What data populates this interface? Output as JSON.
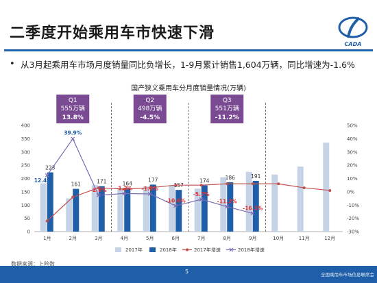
{
  "header": {
    "title": "二季度开始乘用车市快速下滑",
    "logo_text": "CADA"
  },
  "bullet": {
    "text": "从3月起乘用车市场月度销量同比负增长，1-9月累计销售1,604万辆，同比增速为-1.6%"
  },
  "quarters": [
    {
      "label": "Q1",
      "sales": "555万辆",
      "growth": "13.8%",
      "growth_color": "#ffffff"
    },
    {
      "label": "Q2",
      "sales": "498万辆",
      "growth": "-4.5%",
      "growth_color": "#ff4444"
    },
    {
      "label": "Q3",
      "sales": "551万辆",
      "growth": "-11.2%",
      "growth_color": "#ff4444"
    }
  ],
  "footer": {
    "source": "数据来源：上险数",
    "page": "5",
    "brand": "全国乘用车市场信息联席会"
  },
  "colors": {
    "bar2017": "#c5d3e6",
    "bar2018": "#1f5ea8",
    "line2017": "#c0504d",
    "line2018": "#7c6bb3",
    "label_neg": "#e03030",
    "label_pos": "#1f5ea8",
    "quarter_box": "#7a4a93"
  },
  "chart_data": {
    "type": "bar",
    "title": "国产狭义乘用车分月度销量情况(万辆)",
    "categories": [
      "1月",
      "2月",
      "3月",
      "4月",
      "5月",
      "6月",
      "7月",
      "8月",
      "9月",
      "10月",
      "11月",
      "12月"
    ],
    "series": [
      {
        "name": "2017年",
        "kind": "bar",
        "axis": "left",
        "values": [
          182,
          125,
          175,
          165,
          170,
          175,
          162,
          205,
          225,
          215,
          245,
          335
        ]
      },
      {
        "name": "2018年",
        "kind": "bar",
        "axis": "left",
        "values": [
          223,
          161,
          171,
          164,
          177,
          157,
          174,
          186,
          191,
          null,
          null,
          null
        ]
      },
      {
        "name": "2017年增速",
        "kind": "line",
        "axis": "right",
        "values": [
          -22,
          -4,
          3,
          2,
          3,
          5,
          5,
          6,
          6,
          6,
          3,
          1
        ]
      },
      {
        "name": "2018年增速",
        "kind": "line",
        "axis": "right",
        "values": [
          12.4,
          39.9,
          -2.6,
          -1.3,
          -1.6,
          -10.6,
          -5.7,
          -11.2,
          -16.3,
          null,
          null,
          null
        ]
      }
    ],
    "bar_labels_2018": [
      "223",
      "161",
      "171",
      "164",
      "177",
      "157",
      "174",
      "186",
      "191"
    ],
    "growth_labels_2018": [
      "12.4%",
      "39.9%",
      "-2.6%",
      "-1.3%",
      "-1.6%",
      "-10.6%",
      "-5.7%",
      "-11.2%",
      "-16.3%"
    ],
    "ylim": [
      0,
      400
    ],
    "y_ticks": [
      "0",
      "50",
      "100",
      "150",
      "200",
      "250",
      "300",
      "350",
      "400"
    ],
    "y2lim": [
      -30,
      50
    ],
    "y2_ticks": [
      "-30%",
      "-20%",
      "-10%",
      "0%",
      "10%",
      "20%",
      "30%",
      "40%",
      "50%"
    ],
    "legend_position": "bottom",
    "quarter_dividers_after": [
      "3月",
      "6月",
      "9月"
    ]
  }
}
